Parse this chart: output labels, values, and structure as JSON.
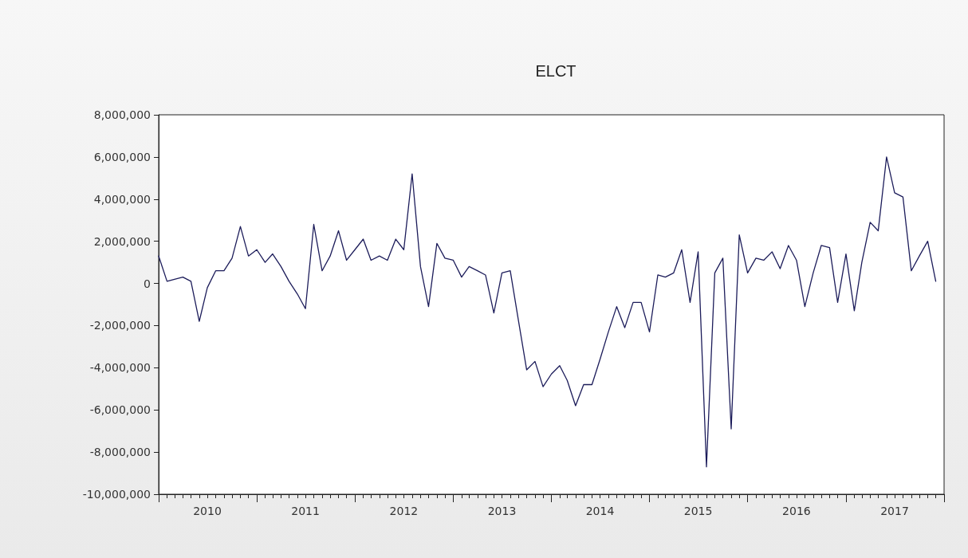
{
  "chart_data": {
    "type": "line",
    "title": "ELCT",
    "x": [
      "2010-01",
      "2010-02",
      "2010-03",
      "2010-04",
      "2010-05",
      "2010-06",
      "2010-07",
      "2010-08",
      "2010-09",
      "2010-10",
      "2010-11",
      "2010-12",
      "2011-01",
      "2011-02",
      "2011-03",
      "2011-04",
      "2011-05",
      "2011-06",
      "2011-07",
      "2011-08",
      "2011-09",
      "2011-10",
      "2011-11",
      "2011-12",
      "2012-01",
      "2012-02",
      "2012-03",
      "2012-04",
      "2012-05",
      "2012-06",
      "2012-07",
      "2012-08",
      "2012-09",
      "2012-10",
      "2012-11",
      "2012-12",
      "2013-01",
      "2013-02",
      "2013-03",
      "2013-04",
      "2013-05",
      "2013-06",
      "2013-07",
      "2013-08",
      "2013-09",
      "2013-10",
      "2013-11",
      "2013-12",
      "2014-01",
      "2014-02",
      "2014-03",
      "2014-04",
      "2014-05",
      "2014-06",
      "2014-07",
      "2014-08",
      "2014-09",
      "2014-10",
      "2014-11",
      "2014-12",
      "2015-01",
      "2015-02",
      "2015-03",
      "2015-04",
      "2015-05",
      "2015-06",
      "2015-07",
      "2015-08",
      "2015-09",
      "2015-10",
      "2015-11",
      "2015-12",
      "2016-01",
      "2016-02",
      "2016-03",
      "2016-04",
      "2016-05",
      "2016-06",
      "2016-07",
      "2016-08",
      "2016-09",
      "2016-10",
      "2016-11",
      "2016-12",
      "2017-01",
      "2017-02",
      "2017-03",
      "2017-04",
      "2017-05",
      "2017-06",
      "2017-07",
      "2017-08",
      "2017-09",
      "2017-10",
      "2017-11",
      "2017-12"
    ],
    "series": [
      {
        "color": "#1c1c5a",
        "values": [
          1300000,
          100000,
          200000,
          300000,
          100000,
          -1800000,
          -200000,
          600000,
          600000,
          1200000,
          2700000,
          1300000,
          1600000,
          1000000,
          1400000,
          800000,
          100000,
          -500000,
          -1200000,
          2800000,
          600000,
          1300000,
          2500000,
          1100000,
          1600000,
          2100000,
          1100000,
          1300000,
          1100000,
          2100000,
          1600000,
          5200000,
          800000,
          -1100000,
          1900000,
          1200000,
          1100000,
          300000,
          800000,
          600000,
          400000,
          -1400000,
          500000,
          600000,
          -1800000,
          -4100000,
          -3700000,
          -4900000,
          -4300000,
          -3900000,
          -4600000,
          -5800000,
          -4800000,
          -4800000,
          -3600000,
          -2300000,
          -1100000,
          -2100000,
          -900000,
          -900000,
          -2300000,
          400000,
          300000,
          500000,
          1600000,
          -900000,
          1500000,
          -8700000,
          500000,
          1200000,
          -6900000,
          2300000,
          500000,
          1200000,
          1100000,
          1500000,
          700000,
          1800000,
          1100000,
          -1100000,
          500000,
          1800000,
          1700000,
          -900000,
          1400000,
          -1300000,
          1000000,
          2900000,
          2500000,
          6000000,
          4300000,
          4100000,
          600000,
          1300000,
          2000000,
          100000
        ]
      }
    ],
    "xlim": [
      "2010-01",
      "2018-01"
    ],
    "xticks": [
      {
        "value": "2010-01",
        "label": null
      },
      {
        "value": "2010-02",
        "label": null
      },
      {
        "value": "2010-03",
        "label": null
      },
      {
        "value": "2010-04",
        "label": null
      },
      {
        "value": "2010-05",
        "label": null
      },
      {
        "value": "2010-06",
        "label": null
      },
      {
        "value": "2010-07",
        "label": "2010"
      },
      {
        "value": "2010-08",
        "label": null
      },
      {
        "value": "2010-09",
        "label": null
      },
      {
        "value": "2010-10",
        "label": null
      },
      {
        "value": "2010-11",
        "label": null
      },
      {
        "value": "2010-12",
        "label": null
      },
      {
        "value": "2011-01",
        "label": null
      },
      {
        "value": "2011-02",
        "label": null
      },
      {
        "value": "2011-03",
        "label": null
      },
      {
        "value": "2011-04",
        "label": null
      },
      {
        "value": "2011-05",
        "label": null
      },
      {
        "value": "2011-06",
        "label": null
      },
      {
        "value": "2011-07",
        "label": "2011"
      },
      {
        "value": "2011-08",
        "label": null
      },
      {
        "value": "2011-09",
        "label": null
      },
      {
        "value": "2011-10",
        "label": null
      },
      {
        "value": "2011-11",
        "label": null
      },
      {
        "value": "2011-12",
        "label": null
      },
      {
        "value": "2012-01",
        "label": null
      },
      {
        "value": "2012-02",
        "label": null
      },
      {
        "value": "2012-03",
        "label": null
      },
      {
        "value": "2012-04",
        "label": null
      },
      {
        "value": "2012-05",
        "label": null
      },
      {
        "value": "2012-06",
        "label": null
      },
      {
        "value": "2012-07",
        "label": "2012"
      },
      {
        "value": "2012-08",
        "label": null
      },
      {
        "value": "2012-09",
        "label": null
      },
      {
        "value": "2012-10",
        "label": null
      },
      {
        "value": "2012-11",
        "label": null
      },
      {
        "value": "2012-12",
        "label": null
      },
      {
        "value": "2013-01",
        "label": null
      },
      {
        "value": "2013-02",
        "label": null
      },
      {
        "value": "2013-03",
        "label": null
      },
      {
        "value": "2013-04",
        "label": null
      },
      {
        "value": "2013-05",
        "label": null
      },
      {
        "value": "2013-06",
        "label": null
      },
      {
        "value": "2013-07",
        "label": "2013"
      },
      {
        "value": "2013-08",
        "label": null
      },
      {
        "value": "2013-09",
        "label": null
      },
      {
        "value": "2013-10",
        "label": null
      },
      {
        "value": "2013-11",
        "label": null
      },
      {
        "value": "2013-12",
        "label": null
      },
      {
        "value": "2014-01",
        "label": null
      },
      {
        "value": "2014-02",
        "label": null
      },
      {
        "value": "2014-03",
        "label": null
      },
      {
        "value": "2014-04",
        "label": null
      },
      {
        "value": "2014-05",
        "label": null
      },
      {
        "value": "2014-06",
        "label": null
      },
      {
        "value": "2014-07",
        "label": "2014"
      },
      {
        "value": "2014-08",
        "label": null
      },
      {
        "value": "2014-09",
        "label": null
      },
      {
        "value": "2014-10",
        "label": null
      },
      {
        "value": "2014-11",
        "label": null
      },
      {
        "value": "2014-12",
        "label": null
      },
      {
        "value": "2015-01",
        "label": null
      },
      {
        "value": "2015-02",
        "label": null
      },
      {
        "value": "2015-03",
        "label": null
      },
      {
        "value": "2015-04",
        "label": null
      },
      {
        "value": "2015-05",
        "label": null
      },
      {
        "value": "2015-06",
        "label": null
      },
      {
        "value": "2015-07",
        "label": "2015"
      },
      {
        "value": "2015-08",
        "label": null
      },
      {
        "value": "2015-09",
        "label": null
      },
      {
        "value": "2015-10",
        "label": null
      },
      {
        "value": "2015-11",
        "label": null
      },
      {
        "value": "2015-12",
        "label": null
      },
      {
        "value": "2016-01",
        "label": null
      },
      {
        "value": "2016-02",
        "label": null
      },
      {
        "value": "2016-03",
        "label": null
      },
      {
        "value": "2016-04",
        "label": null
      },
      {
        "value": "2016-05",
        "label": null
      },
      {
        "value": "2016-06",
        "label": null
      },
      {
        "value": "2016-07",
        "label": "2016"
      },
      {
        "value": "2016-08",
        "label": null
      },
      {
        "value": "2016-09",
        "label": null
      },
      {
        "value": "2016-10",
        "label": null
      },
      {
        "value": "2016-11",
        "label": null
      },
      {
        "value": "2016-12",
        "label": null
      },
      {
        "value": "2017-01",
        "label": null
      },
      {
        "value": "2017-02",
        "label": null
      },
      {
        "value": "2017-03",
        "label": null
      },
      {
        "value": "2017-04",
        "label": null
      },
      {
        "value": "2017-05",
        "label": null
      },
      {
        "value": "2017-06",
        "label": null
      },
      {
        "value": "2017-07",
        "label": "2017"
      },
      {
        "value": "2017-08",
        "label": null
      },
      {
        "value": "2017-09",
        "label": null
      },
      {
        "value": "2017-10",
        "label": null
      },
      {
        "value": "2017-11",
        "label": null
      },
      {
        "value": "2017-12",
        "label": null
      },
      {
        "value": "2018-01",
        "label": null
      }
    ],
    "ylim": [
      -10000000,
      8000000
    ],
    "yticks": [
      {
        "value": -10000000,
        "label": "-10,000,000"
      },
      {
        "value": -8000000,
        "label": "-8,000,000"
      },
      {
        "value": -6000000,
        "label": "-6,000,000"
      },
      {
        "value": -4000000,
        "label": "-4,000,000"
      },
      {
        "value": -2000000,
        "label": "-2,000,000"
      },
      {
        "value": 0,
        "label": "0"
      },
      {
        "value": 2000000,
        "label": "2,000,000"
      },
      {
        "value": 4000000,
        "label": "4,000,000"
      },
      {
        "value": 6000000,
        "label": "6,000,000"
      },
      {
        "value": 8000000,
        "label": "8,000,000"
      }
    ],
    "grid": false,
    "marker": "none",
    "line_style": "solid"
  }
}
